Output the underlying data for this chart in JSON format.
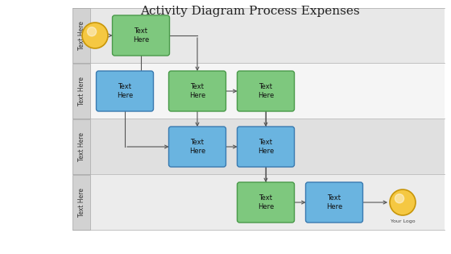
{
  "title": "Activity Diagram Process Expenses",
  "title_fontsize": 11,
  "swimlane_labels": [
    "Text Here",
    "Text Here",
    "Text Here",
    "Text Here"
  ],
  "lane_colors": [
    "#e8e8e8",
    "#f5f5f5",
    "#e0e0e0",
    "#ececec"
  ],
  "lane_label_bg": "#d2d2d2",
  "green_fc": "#7ec87e",
  "green_ec": "#4a9a4a",
  "blue_fc": "#6ab4e0",
  "blue_ec": "#3a7ab0",
  "yellow_fc": "#f5c842",
  "yellow_ec": "#c8960a",
  "arrow_color": "#555555",
  "fig_width": 5.6,
  "fig_height": 3.15,
  "dpi": 100
}
